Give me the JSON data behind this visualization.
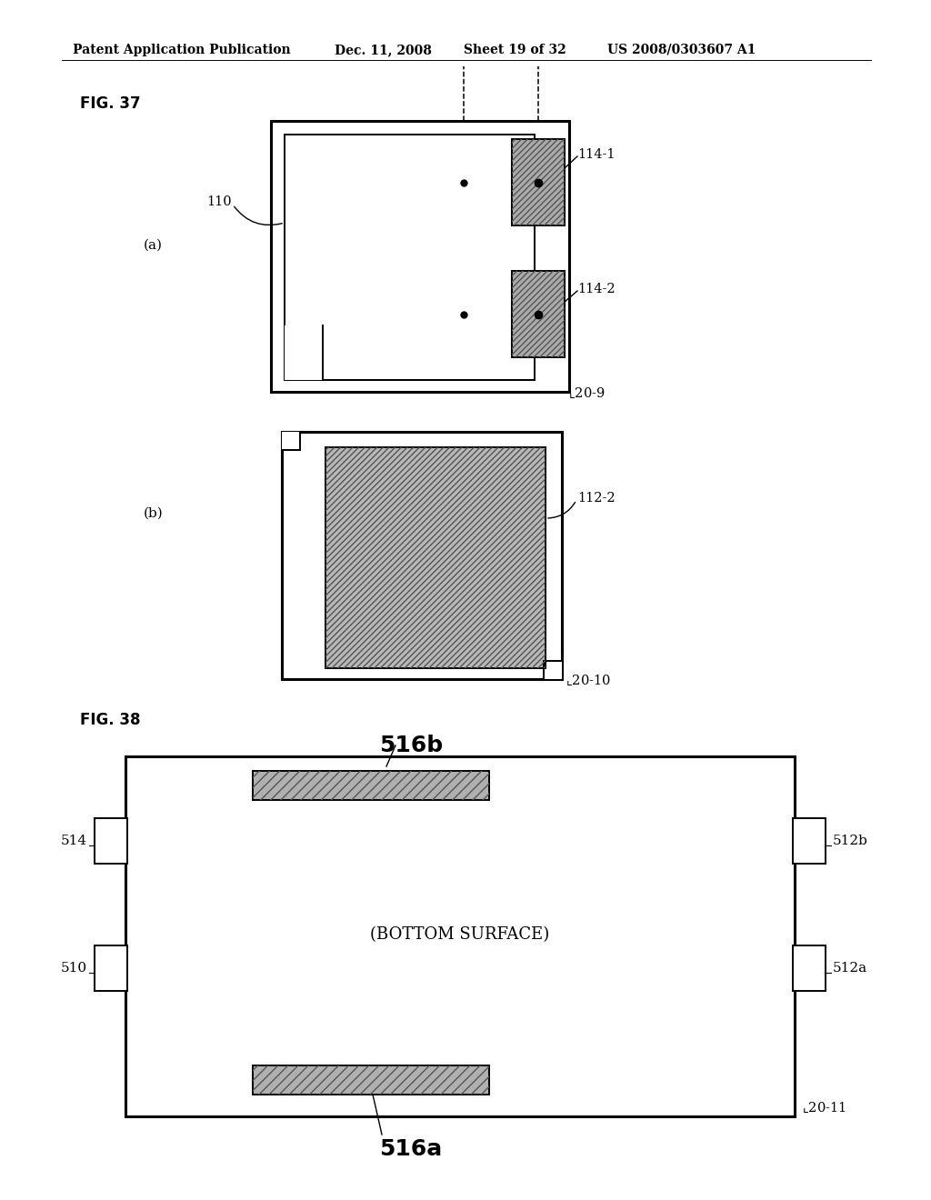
{
  "bg_color": "#ffffff",
  "header_text": "Patent Application Publication",
  "header_date": "Dec. 11, 2008",
  "header_sheet": "Sheet 19 of 32",
  "header_patent": "US 2008/0303607 A1",
  "fig37_label": "FIG. 37",
  "fig38_label": "FIG. 38",
  "label_a": "(a)",
  "label_b": "(b)"
}
